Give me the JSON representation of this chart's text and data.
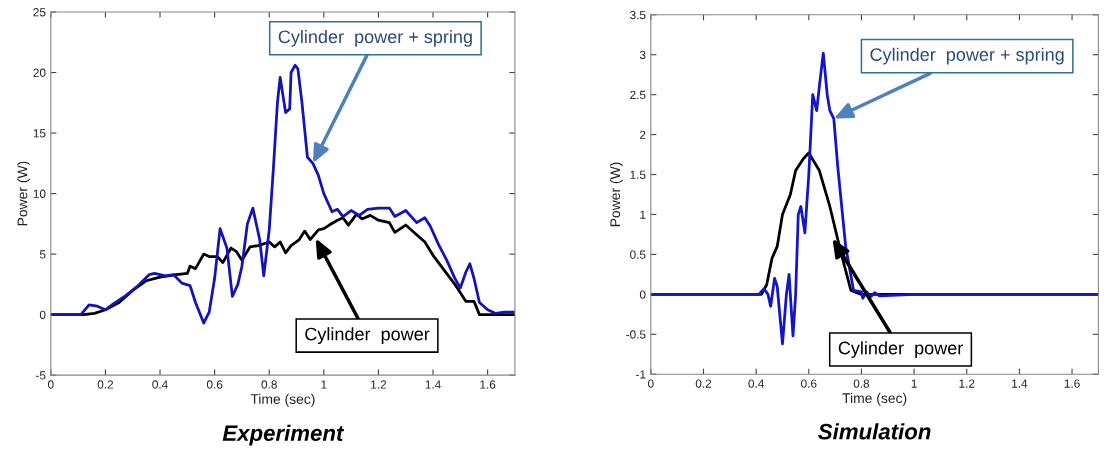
{
  "chart_data": [
    {
      "type": "line",
      "title": "Experiment",
      "xlabel": "Time (sec)",
      "ylabel": "Power (W)",
      "xlim": [
        0,
        1.7
      ],
      "ylim": [
        -5,
        25
      ],
      "xticks": [
        0,
        0.2,
        0.4,
        0.6,
        0.8,
        1,
        1.2,
        1.4,
        1.6
      ],
      "yticks": [
        -5,
        0,
        5,
        10,
        15,
        20,
        25
      ],
      "grid": false,
      "series": [
        {
          "color": "#000000",
          "x": [
            0,
            0.12,
            0.16,
            0.2,
            0.25,
            0.3,
            0.35,
            0.4,
            0.46,
            0.5,
            0.51,
            0.53,
            0.56,
            0.58,
            0.61,
            0.63,
            0.66,
            0.68,
            0.7,
            0.73,
            0.76,
            0.8,
            0.82,
            0.84,
            0.86,
            0.88,
            0.91,
            0.93,
            0.95,
            0.98,
            1.0,
            1.02,
            1.05,
            1.07,
            1.09,
            1.12,
            1.14,
            1.17,
            1.2,
            1.24,
            1.26,
            1.3,
            1.34,
            1.37,
            1.4,
            1.44,
            1.48,
            1.52,
            1.55,
            1.57,
            1.7
          ],
          "values": [
            0,
            0,
            0.1,
            0.4,
            1.0,
            2.0,
            2.8,
            3.1,
            3.3,
            3.4,
            4.0,
            3.8,
            5.0,
            4.8,
            4.8,
            4.3,
            5.5,
            5.2,
            4.5,
            5.6,
            5.7,
            6.0,
            5.6,
            6.0,
            5.1,
            5.7,
            6.2,
            6.9,
            6.2,
            7.0,
            7.1,
            7.4,
            7.8,
            8.0,
            7.4,
            8.3,
            7.9,
            8.2,
            7.8,
            7.6,
            6.8,
            7.4,
            6.6,
            6.0,
            4.9,
            3.7,
            2.5,
            1.1,
            1.1,
            0,
            0
          ]
        },
        {
          "color": "#1414b4",
          "x": [
            0,
            0.11,
            0.14,
            0.17,
            0.2,
            0.23,
            0.27,
            0.32,
            0.36,
            0.38,
            0.42,
            0.45,
            0.48,
            0.51,
            0.53,
            0.56,
            0.58,
            0.6,
            0.62,
            0.645,
            0.665,
            0.685,
            0.7,
            0.72,
            0.74,
            0.765,
            0.78,
            0.8,
            0.815,
            0.83,
            0.84,
            0.86,
            0.875,
            0.88,
            0.895,
            0.905,
            0.92,
            0.94,
            0.96,
            0.98,
            1.0,
            1.03,
            1.05,
            1.07,
            1.1,
            1.13,
            1.16,
            1.2,
            1.24,
            1.26,
            1.3,
            1.34,
            1.37,
            1.39,
            1.42,
            1.45,
            1.48,
            1.5,
            1.52,
            1.535,
            1.55,
            1.57,
            1.6,
            1.63,
            1.66,
            1.7
          ],
          "values": [
            0,
            0,
            0.8,
            0.7,
            0.4,
            0.9,
            1.5,
            2.4,
            3.3,
            3.4,
            3.2,
            3.3,
            2.6,
            2.4,
            1.0,
            -0.7,
            0.2,
            3.0,
            7.1,
            5.5,
            1.5,
            2.5,
            4.0,
            7.5,
            8.8,
            6.2,
            3.2,
            7.0,
            12,
            17.5,
            19.6,
            16.7,
            17.0,
            20.0,
            20.6,
            20.3,
            17.5,
            13,
            12.5,
            11.5,
            10,
            8.5,
            8.7,
            8.1,
            8.6,
            8.2,
            8.7,
            8.8,
            8.8,
            8.1,
            8.6,
            7.6,
            8.0,
            7.3,
            5.8,
            4.5,
            3.0,
            2.2,
            3.5,
            4.2,
            3.0,
            1.0,
            0.4,
            0.1,
            0.2,
            0.2
          ]
        }
      ],
      "annotations": [
        {
          "text": "Cylinder  power + spring",
          "x": 0.96,
          "y": 12.5
        },
        {
          "text": "Cylinder  power",
          "x": 0.97,
          "y": 6.3
        }
      ]
    },
    {
      "type": "line",
      "title": "Simulation",
      "xlabel": "Time (sec)",
      "ylabel": "Power (W)",
      "xlim": [
        0,
        1.7
      ],
      "ylim": [
        -1,
        3.5
      ],
      "xticks": [
        0,
        0.2,
        0.4,
        0.6,
        0.8,
        1,
        1.2,
        1.4,
        1.6
      ],
      "yticks": [
        -1,
        -0.5,
        0,
        0.5,
        1,
        1.5,
        2,
        2.5,
        3,
        3.5
      ],
      "grid": false,
      "series": [
        {
          "color": "#000000",
          "x": [
            0,
            0.42,
            0.44,
            0.46,
            0.48,
            0.5,
            0.53,
            0.55,
            0.58,
            0.6,
            0.64,
            0.68,
            0.72,
            0.76,
            0.8,
            1.7
          ],
          "values": [
            0,
            0,
            0.12,
            0.45,
            0.6,
            1.0,
            1.25,
            1.55,
            1.7,
            1.77,
            1.55,
            1.1,
            0.55,
            0.05,
            0,
            0
          ]
        },
        {
          "color": "#1414c8",
          "x": [
            0,
            0.41,
            0.43,
            0.445,
            0.455,
            0.47,
            0.48,
            0.5,
            0.515,
            0.525,
            0.54,
            0.55,
            0.56,
            0.57,
            0.585,
            0.6,
            0.615,
            0.63,
            0.64,
            0.655,
            0.67,
            0.68,
            0.695,
            0.71,
            0.74,
            0.77,
            0.8,
            0.805,
            0.82,
            0.835,
            0.85,
            0.87,
            1.0,
            1.7
          ],
          "values": [
            0,
            0,
            0.07,
            0,
            -0.15,
            0.2,
            0.1,
            -0.62,
            0.0,
            0.25,
            -0.52,
            0.0,
            1.0,
            1.1,
            0.77,
            1.5,
            2.5,
            2.3,
            2.6,
            3.02,
            2.5,
            2.3,
            2.2,
            1.6,
            0.6,
            0.05,
            0.03,
            -0.05,
            0.03,
            -0.03,
            0.02,
            -0.02,
            0,
            0
          ]
        }
      ],
      "annotations": [
        {
          "text": "Cylinder  power + spring",
          "x": 0.695,
          "y": 2.2
        },
        {
          "text": "Cylinder  power",
          "x": 0.69,
          "y": 0.7
        }
      ]
    }
  ]
}
